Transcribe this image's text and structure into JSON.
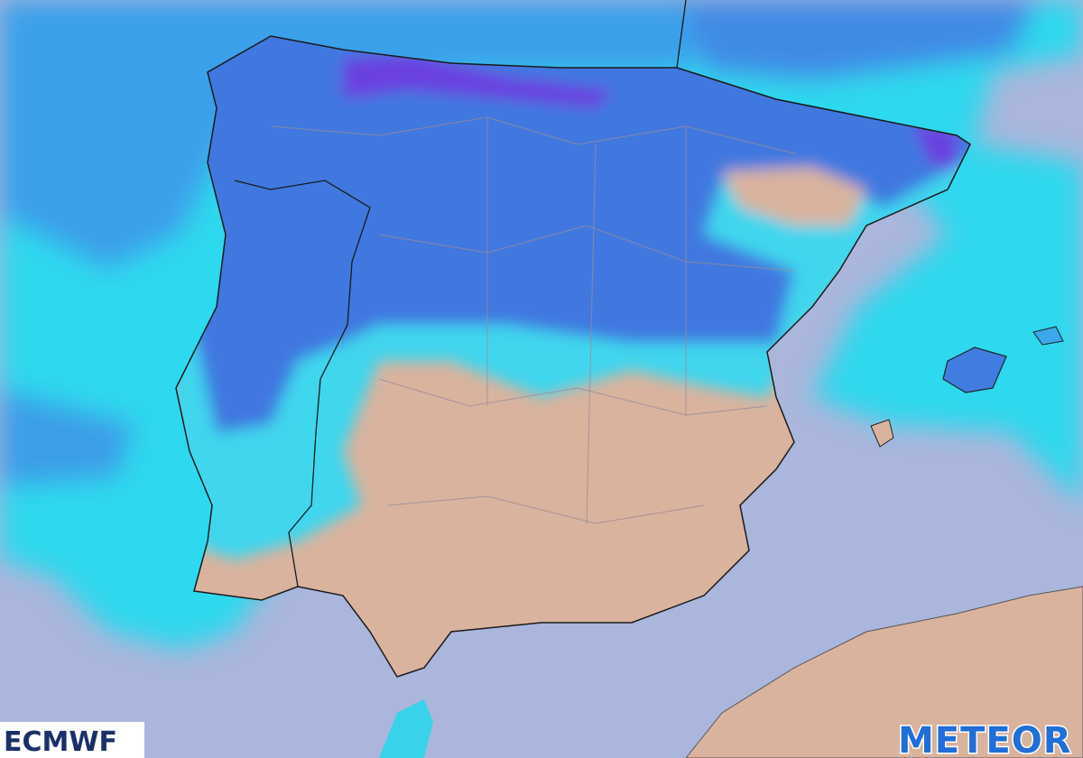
{
  "logos": {
    "source": "ECMWF",
    "brand": "METEOR"
  }
}
